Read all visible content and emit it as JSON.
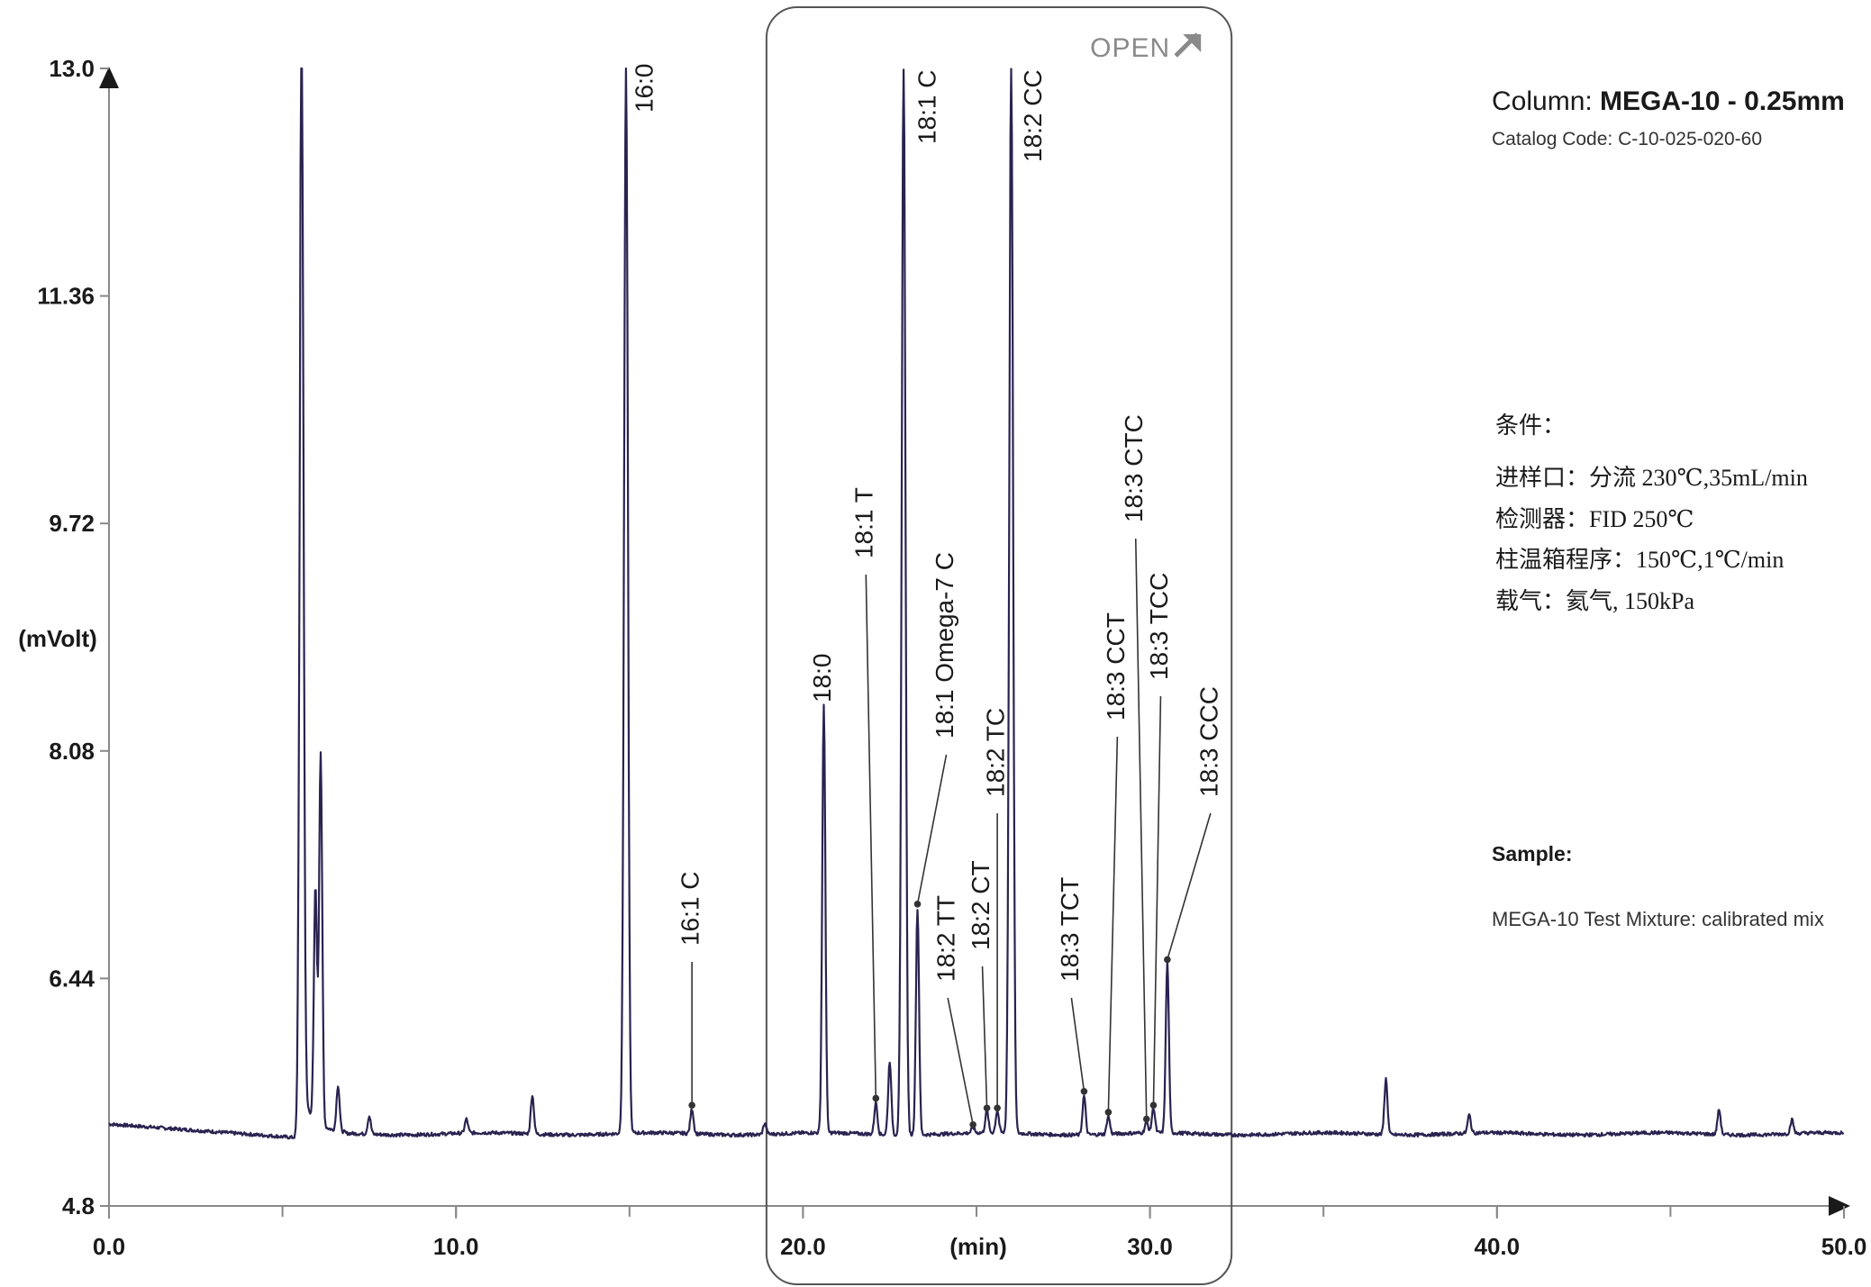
{
  "chart_data": {
    "type": "line",
    "xlabel": "(min)",
    "ylabel": "(mVolt)",
    "xlim": [
      0,
      50
    ],
    "ylim": [
      4.8,
      13.0
    ],
    "x_ticks": [
      "0.0",
      "10.0",
      "20.0",
      "30.0",
      "40.0",
      "50.0"
    ],
    "y_ticks": [
      "13.0",
      "11.36",
      "9.72",
      "8.08",
      "6.44",
      "4.8"
    ],
    "baseline_mv": 5.32,
    "series_color": "#2a2350",
    "peaks": [
      {
        "label": "",
        "x": 5.55,
        "height": 13.0
      },
      {
        "label": "",
        "x": 5.95,
        "height": 7.0
      },
      {
        "label": "",
        "x": 6.1,
        "height": 8.0
      },
      {
        "label": "",
        "x": 6.6,
        "height": 5.65
      },
      {
        "label": "",
        "x": 7.5,
        "height": 5.45
      },
      {
        "label": "",
        "x": 10.3,
        "height": 5.42
      },
      {
        "label": "",
        "x": 12.2,
        "height": 5.6
      },
      {
        "label": "16:0",
        "x": 14.9,
        "height": 13.0
      },
      {
        "label": "16:1 C",
        "x": 16.8,
        "height": 5.5
      },
      {
        "label": "",
        "x": 18.9,
        "height": 5.4
      },
      {
        "label": "18:0",
        "x": 20.6,
        "height": 8.4
      },
      {
        "label": "18:1 T",
        "x": 22.1,
        "height": 5.55
      },
      {
        "label": "",
        "x": 22.5,
        "height": 5.85
      },
      {
        "label": "18:1 C",
        "x": 22.9,
        "height": 13.0
      },
      {
        "label": "18:1 Omega-7 C",
        "x": 23.3,
        "height": 6.95
      },
      {
        "label": "18:2 TT",
        "x": 24.9,
        "height": 5.36
      },
      {
        "label": "18:2 CT",
        "x": 25.3,
        "height": 5.48
      },
      {
        "label": "18:2 TC",
        "x": 25.6,
        "height": 5.48
      },
      {
        "label": "18:2 CC",
        "x": 26.0,
        "height": 13.0
      },
      {
        "label": "18:3 TCT",
        "x": 28.1,
        "height": 5.6
      },
      {
        "label": "18:3 CCT",
        "x": 28.8,
        "height": 5.45
      },
      {
        "label": "18:3 CTC",
        "x": 29.9,
        "height": 5.4
      },
      {
        "label": "18:3 TCC",
        "x": 30.1,
        "height": 5.5
      },
      {
        "label": "18:3 CCC",
        "x": 30.5,
        "height": 6.55
      },
      {
        "label": "",
        "x": 36.8,
        "height": 5.72
      },
      {
        "label": "",
        "x": 39.2,
        "height": 5.45
      },
      {
        "label": "",
        "x": 46.4,
        "height": 5.5
      },
      {
        "label": "",
        "x": 48.5,
        "height": 5.42
      }
    ],
    "highlight_region": {
      "x_start": 19.0,
      "x_end": 32.3
    }
  },
  "highlight": {
    "badge": "OPEN",
    "badge_icon": "arrow-up-right-icon",
    "badge_color": "#8a8a8a"
  },
  "column": {
    "prefix": "Column: ",
    "name": "MEGA-10 - 0.25mm",
    "catalog": "Catalog Code: C-10-025-020-60"
  },
  "conditions": {
    "title": "条件：",
    "lines": [
      "进样口：分流 230℃,35mL/min",
      "检测器：FID 250℃",
      "柱温箱程序：150℃,1℃/min",
      "载气：氦气, 150kPa"
    ]
  },
  "sample": {
    "title": "Sample:",
    "text": "MEGA-10 Test Mixture: calibrated mix"
  }
}
